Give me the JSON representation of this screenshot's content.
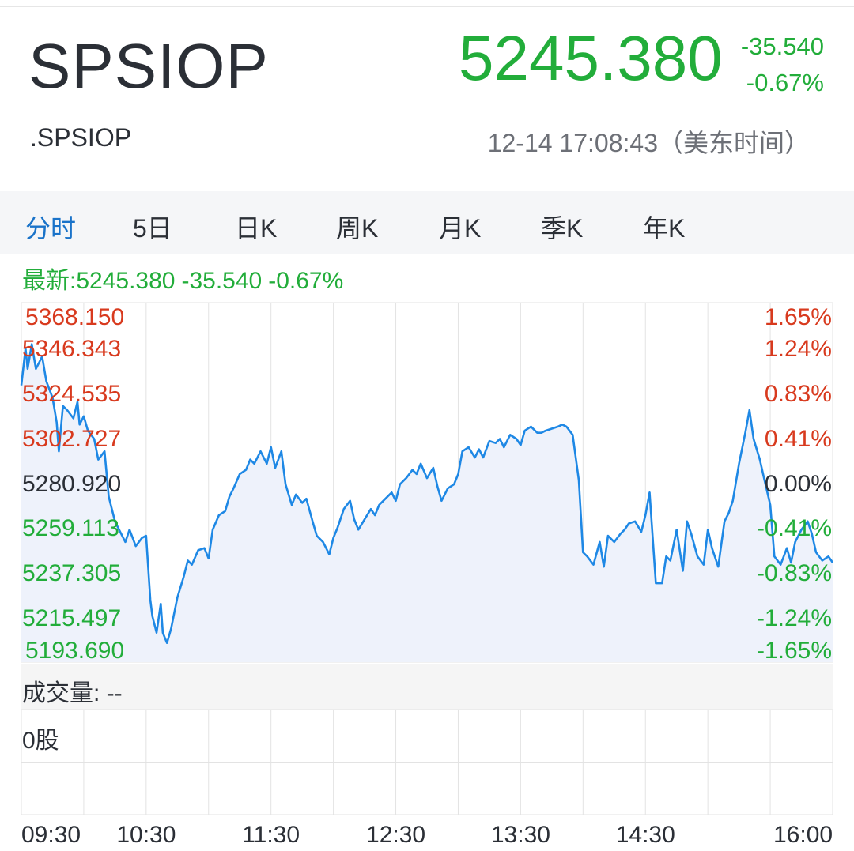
{
  "header": {
    "symbol": "SPSIOP",
    "code": ".SPSIOP",
    "price": "5245.380",
    "change": "-35.540",
    "change_pct": "-0.67%",
    "timestamp": "12-14 17:08:43（美东时间）"
  },
  "tabs": [
    {
      "label": "分时",
      "active": true
    },
    {
      "label": "5日"
    },
    {
      "label": "日K"
    },
    {
      "label": "周K"
    },
    {
      "label": "月K"
    },
    {
      "label": "季K"
    },
    {
      "label": "年K"
    }
  ],
  "latest": {
    "label": "最新:5245.380",
    "change": "-35.540",
    "change_pct": "-0.67%"
  },
  "volume": {
    "label": "成交量: --",
    "value": "0股"
  },
  "colors": {
    "up": "#d83a1e",
    "down": "#22ad3a",
    "neutral": "#2b2f36",
    "line": "#1e88e5",
    "accent": "#1a73c9"
  },
  "chart_data": {
    "type": "line",
    "prev_close": 5280.92,
    "ylim": [
      5193.69,
      5368.15
    ],
    "y_ticks_left": [
      "5368.150",
      "5346.343",
      "5324.535",
      "5302.727",
      "5280.920",
      "5259.113",
      "5237.305",
      "5215.497",
      "5193.690"
    ],
    "y_ticks_right": [
      "1.65%",
      "1.24%",
      "0.83%",
      "0.41%",
      "0.00%",
      "-0.41%",
      "-0.83%",
      "-1.24%",
      "-1.65%"
    ],
    "x_ticks": [
      "09:30",
      "10:30",
      "11:30",
      "12:30",
      "13:30",
      "14:30",
      "16:00"
    ],
    "x_tick_minutes": [
      0,
      60,
      120,
      180,
      240,
      300,
      390
    ],
    "x_span_minutes": 390,
    "series": [
      {
        "minutes": [
          0,
          2,
          3,
          5,
          7,
          10,
          12,
          15,
          17,
          18,
          20,
          22,
          25,
          27,
          28,
          30,
          32,
          35,
          37,
          40,
          42,
          45,
          47,
          50,
          52,
          55,
          58,
          60,
          62,
          63,
          65,
          67,
          68,
          70,
          72,
          75,
          78,
          80,
          82,
          85,
          88,
          90,
          92,
          95,
          98,
          100,
          102,
          105,
          108,
          110,
          112,
          115,
          118,
          120,
          122,
          125,
          127,
          130,
          132,
          135,
          137,
          140,
          142,
          145,
          148,
          150,
          152,
          155,
          158,
          160,
          162,
          165,
          168,
          170,
          172,
          175,
          178,
          180,
          182,
          185,
          188,
          190,
          192,
          195,
          198,
          200,
          202,
          205,
          208,
          210,
          212,
          215,
          218,
          220,
          222,
          225,
          228,
          230,
          232,
          235,
          238,
          240,
          242,
          245,
          248,
          250,
          252,
          255,
          258,
          260,
          262,
          265,
          268,
          270,
          272,
          275,
          278,
          280,
          282,
          285,
          288,
          290,
          292,
          295,
          298,
          300,
          302,
          305,
          308,
          310,
          312,
          315,
          318,
          320,
          322,
          325,
          328,
          330,
          332,
          335,
          338,
          340,
          342,
          345,
          348,
          350,
          352,
          355,
          357,
          360,
          362,
          365,
          368,
          370,
          372,
          375,
          378,
          380,
          382,
          385,
          388,
          390
        ],
        "values": [
          5328,
          5346,
          5336,
          5348,
          5336,
          5342,
          5330,
          5322,
          5310,
          5296,
          5318,
          5316,
          5312,
          5320,
          5309,
          5313,
          5306,
          5302,
          5292,
          5296,
          5274,
          5262,
          5258,
          5252,
          5258,
          5250,
          5254,
          5255,
          5224,
          5216,
          5208,
          5222,
          5208,
          5203,
          5210,
          5225,
          5235,
          5243,
          5241,
          5248,
          5249,
          5244,
          5258,
          5265,
          5267,
          5274,
          5278,
          5285,
          5287,
          5292,
          5290,
          5296,
          5290,
          5298,
          5288,
          5296,
          5280,
          5270,
          5275,
          5271,
          5273,
          5262,
          5255,
          5252,
          5246,
          5254,
          5259,
          5268,
          5272,
          5263,
          5258,
          5263,
          5268,
          5265,
          5270,
          5273,
          5276,
          5272,
          5280,
          5283,
          5287,
          5285,
          5290,
          5283,
          5288,
          5279,
          5272,
          5278,
          5280,
          5285,
          5296,
          5298,
          5293,
          5297,
          5293,
          5301,
          5300,
          5302,
          5298,
          5304,
          5302,
          5299,
          5306,
          5308,
          5305,
          5305,
          5306,
          5307,
          5308,
          5309,
          5308,
          5304,
          5282,
          5247,
          5245,
          5241,
          5252,
          5240,
          5255,
          5252,
          5256,
          5258,
          5261,
          5262,
          5257,
          5265,
          5276,
          5232,
          5232,
          5245,
          5243,
          5258,
          5238,
          5262,
          5256,
          5245,
          5241,
          5258,
          5249,
          5240,
          5262,
          5266,
          5272,
          5290,
          5305,
          5316,
          5302,
          5292,
          5283,
          5270,
          5245,
          5241,
          5249,
          5242,
          5252,
          5258,
          5262,
          5256,
          5247,
          5243,
          5245,
          5242
        ]
      }
    ]
  }
}
